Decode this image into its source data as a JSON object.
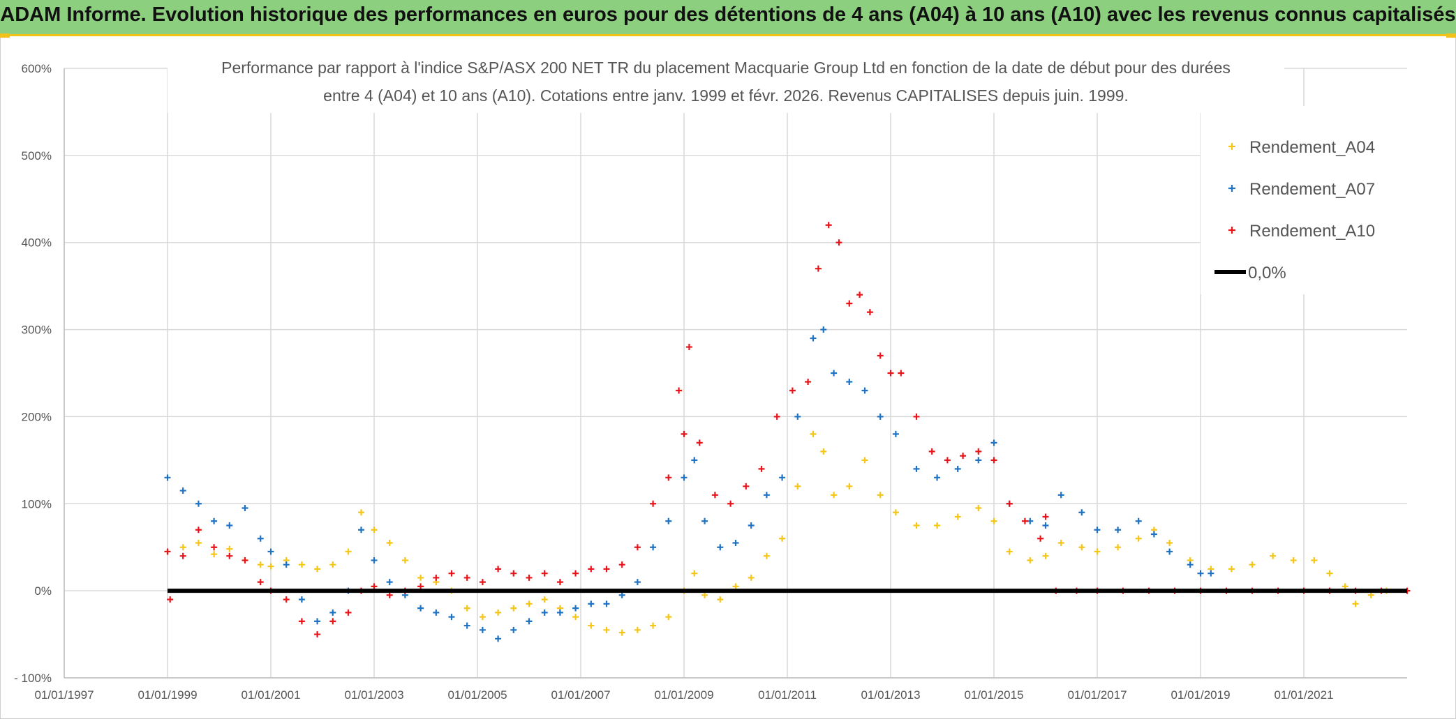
{
  "header": {
    "banner": "ADAM Informe. Evolution historique des performances en euros pour des détentions de 4 ans (A04) à 10 ans (A10) avec les revenus connus capitalisés"
  },
  "chart_data": {
    "type": "scatter",
    "title_line1": "Performance par rapport à l'indice S&P/ASX 200 NET TR  du placement Macquarie Group Ltd en fonction de la date de début pour des durées",
    "title_line2": "entre 4 (A04) et 10 ans (A10). Cotations entre janv. 1999 et févr. 2026. Revenus CAPITALISES depuis juin. 1999.",
    "x_ticks": [
      "01/01/1997",
      "01/01/1999",
      "01/01/2001",
      "01/01/2003",
      "01/01/2005",
      "01/01/2007",
      "01/01/2009",
      "01/01/2011",
      "01/01/2013",
      "01/01/2015",
      "01/01/2017",
      "01/01/2019",
      "01/01/2021"
    ],
    "y_ticks": [
      "600%",
      "500%",
      "400%",
      "300%",
      "200%",
      "100%",
      "0%",
      "- 100%"
    ],
    "xlim_years": [
      1997,
      2023
    ],
    "ylim_pct": [
      -100,
      600
    ],
    "grid": true,
    "legend_position": "top-right",
    "colors": {
      "A04": "#f5c518",
      "A07": "#1f73c2",
      "A10": "#e8141a",
      "zero": "#000000",
      "grid": "#d9d9d9"
    },
    "series": [
      {
        "name": "Rendement_A04",
        "key": "A04",
        "points": [
          [
            1999.0,
            45
          ],
          [
            1999.3,
            50
          ],
          [
            1999.6,
            55
          ],
          [
            1999.9,
            42
          ],
          [
            2000.2,
            48
          ],
          [
            2000.5,
            35
          ],
          [
            2000.8,
            30
          ],
          [
            2001.0,
            28
          ],
          [
            2001.3,
            35
          ],
          [
            2001.6,
            30
          ],
          [
            2001.9,
            25
          ],
          [
            2002.2,
            30
          ],
          [
            2002.5,
            45
          ],
          [
            2002.75,
            90
          ],
          [
            2003.0,
            70
          ],
          [
            2003.3,
            55
          ],
          [
            2003.6,
            35
          ],
          [
            2003.9,
            15
          ],
          [
            2004.2,
            10
          ],
          [
            2004.5,
            0
          ],
          [
            2004.8,
            -20
          ],
          [
            2005.1,
            -30
          ],
          [
            2005.4,
            -25
          ],
          [
            2005.7,
            -20
          ],
          [
            2006.0,
            -15
          ],
          [
            2006.3,
            -10
          ],
          [
            2006.6,
            -20
          ],
          [
            2006.9,
            -30
          ],
          [
            2007.2,
            -40
          ],
          [
            2007.5,
            -45
          ],
          [
            2007.8,
            -48
          ],
          [
            2008.1,
            -45
          ],
          [
            2008.4,
            -40
          ],
          [
            2008.7,
            -30
          ],
          [
            2009.0,
            0
          ],
          [
            2009.2,
            20
          ],
          [
            2009.4,
            -5
          ],
          [
            2009.7,
            -10
          ],
          [
            2010.0,
            5
          ],
          [
            2010.3,
            15
          ],
          [
            2010.6,
            40
          ],
          [
            2010.9,
            60
          ],
          [
            2011.2,
            120
          ],
          [
            2011.5,
            180
          ],
          [
            2011.7,
            160
          ],
          [
            2011.9,
            110
          ],
          [
            2012.2,
            120
          ],
          [
            2012.5,
            150
          ],
          [
            2012.8,
            110
          ],
          [
            2013.1,
            90
          ],
          [
            2013.5,
            75
          ],
          [
            2013.9,
            75
          ],
          [
            2014.3,
            85
          ],
          [
            2014.7,
            95
          ],
          [
            2015.0,
            80
          ],
          [
            2015.3,
            45
          ],
          [
            2015.7,
            35
          ],
          [
            2016.0,
            40
          ],
          [
            2016.3,
            55
          ],
          [
            2016.7,
            50
          ],
          [
            2017.0,
            45
          ],
          [
            2017.4,
            50
          ],
          [
            2017.8,
            60
          ],
          [
            2018.1,
            70
          ],
          [
            2018.4,
            55
          ],
          [
            2018.8,
            35
          ],
          [
            2019.2,
            25
          ],
          [
            2019.6,
            25
          ],
          [
            2020.0,
            30
          ],
          [
            2020.4,
            40
          ],
          [
            2020.8,
            35
          ],
          [
            2021.2,
            35
          ],
          [
            2021.5,
            20
          ],
          [
            2021.8,
            5
          ],
          [
            2022.0,
            -15
          ],
          [
            2022.3,
            -5
          ],
          [
            2022.6,
            0
          ],
          [
            2023.0,
            0
          ]
        ]
      },
      {
        "name": "Rendement_A07",
        "key": "A07",
        "points": [
          [
            1999.0,
            130
          ],
          [
            1999.3,
            115
          ],
          [
            1999.6,
            100
          ],
          [
            1999.9,
            80
          ],
          [
            2000.2,
            75
          ],
          [
            2000.5,
            95
          ],
          [
            2000.8,
            60
          ],
          [
            2001.0,
            45
          ],
          [
            2001.3,
            30
          ],
          [
            2001.6,
            -10
          ],
          [
            2001.9,
            -35
          ],
          [
            2002.2,
            -25
          ],
          [
            2002.5,
            0
          ],
          [
            2002.75,
            70
          ],
          [
            2003.0,
            35
          ],
          [
            2003.3,
            10
          ],
          [
            2003.6,
            -5
          ],
          [
            2003.9,
            -20
          ],
          [
            2004.2,
            -25
          ],
          [
            2004.5,
            -30
          ],
          [
            2004.8,
            -40
          ],
          [
            2005.1,
            -45
          ],
          [
            2005.4,
            -55
          ],
          [
            2005.7,
            -45
          ],
          [
            2006.0,
            -35
          ],
          [
            2006.3,
            -25
          ],
          [
            2006.6,
            -25
          ],
          [
            2006.9,
            -20
          ],
          [
            2007.2,
            -15
          ],
          [
            2007.5,
            -15
          ],
          [
            2007.8,
            -5
          ],
          [
            2008.1,
            10
          ],
          [
            2008.4,
            50
          ],
          [
            2008.7,
            80
          ],
          [
            2009.0,
            130
          ],
          [
            2009.2,
            150
          ],
          [
            2009.4,
            80
          ],
          [
            2009.7,
            50
          ],
          [
            2010.0,
            55
          ],
          [
            2010.3,
            75
          ],
          [
            2010.6,
            110
          ],
          [
            2010.9,
            130
          ],
          [
            2011.2,
            200
          ],
          [
            2011.5,
            290
          ],
          [
            2011.7,
            300
          ],
          [
            2011.9,
            250
          ],
          [
            2012.2,
            240
          ],
          [
            2012.5,
            230
          ],
          [
            2012.8,
            200
          ],
          [
            2013.1,
            180
          ],
          [
            2013.5,
            140
          ],
          [
            2013.9,
            130
          ],
          [
            2014.3,
            140
          ],
          [
            2014.7,
            150
          ],
          [
            2015.0,
            170
          ],
          [
            2015.3,
            100
          ],
          [
            2015.7,
            80
          ],
          [
            2016.0,
            75
          ],
          [
            2016.3,
            110
          ],
          [
            2016.7,
            90
          ],
          [
            2017.0,
            70
          ],
          [
            2017.4,
            70
          ],
          [
            2017.8,
            80
          ],
          [
            2018.1,
            65
          ],
          [
            2018.4,
            45
          ],
          [
            2018.8,
            30
          ],
          [
            2019.0,
            20
          ],
          [
            2019.2,
            20
          ]
        ]
      },
      {
        "name": "Rendement_A10",
        "key": "A10",
        "points": [
          [
            1999.0,
            45
          ],
          [
            1999.05,
            -10
          ],
          [
            1999.3,
            40
          ],
          [
            1999.6,
            70
          ],
          [
            1999.9,
            50
          ],
          [
            2000.2,
            40
          ],
          [
            2000.5,
            35
          ],
          [
            2000.8,
            10
          ],
          [
            2001.0,
            0
          ],
          [
            2001.3,
            -10
          ],
          [
            2001.6,
            -35
          ],
          [
            2001.9,
            -50
          ],
          [
            2002.2,
            -35
          ],
          [
            2002.5,
            -25
          ],
          [
            2002.75,
            0
          ],
          [
            2003.0,
            5
          ],
          [
            2003.3,
            -5
          ],
          [
            2003.6,
            0
          ],
          [
            2003.9,
            5
          ],
          [
            2004.2,
            15
          ],
          [
            2004.5,
            20
          ],
          [
            2004.8,
            15
          ],
          [
            2005.1,
            10
          ],
          [
            2005.4,
            25
          ],
          [
            2005.7,
            20
          ],
          [
            2006.0,
            15
          ],
          [
            2006.3,
            20
          ],
          [
            2006.6,
            10
          ],
          [
            2006.9,
            20
          ],
          [
            2007.2,
            25
          ],
          [
            2007.5,
            25
          ],
          [
            2007.8,
            30
          ],
          [
            2008.1,
            50
          ],
          [
            2008.4,
            100
          ],
          [
            2008.7,
            130
          ],
          [
            2008.9,
            230
          ],
          [
            2009.0,
            180
          ],
          [
            2009.1,
            280
          ],
          [
            2009.3,
            170
          ],
          [
            2009.6,
            110
          ],
          [
            2009.9,
            100
          ],
          [
            2010.2,
            120
          ],
          [
            2010.5,
            140
          ],
          [
            2010.8,
            200
          ],
          [
            2011.1,
            230
          ],
          [
            2011.4,
            240
          ],
          [
            2011.6,
            370
          ],
          [
            2011.8,
            420
          ],
          [
            2012.0,
            400
          ],
          [
            2012.2,
            330
          ],
          [
            2012.4,
            340
          ],
          [
            2012.6,
            320
          ],
          [
            2012.8,
            270
          ],
          [
            2013.0,
            250
          ],
          [
            2013.2,
            250
          ],
          [
            2013.5,
            200
          ],
          [
            2013.8,
            160
          ],
          [
            2014.1,
            150
          ],
          [
            2014.4,
            155
          ],
          [
            2014.7,
            160
          ],
          [
            2015.0,
            150
          ],
          [
            2015.3,
            100
          ],
          [
            2015.6,
            80
          ],
          [
            2015.9,
            60
          ],
          [
            2016.0,
            85
          ],
          [
            2016.2,
            0
          ],
          [
            2016.6,
            0
          ],
          [
            2017.0,
            0
          ],
          [
            2017.5,
            0
          ],
          [
            2018.0,
            0
          ],
          [
            2018.5,
            0
          ],
          [
            2019.0,
            0
          ],
          [
            2019.5,
            0
          ],
          [
            2020.0,
            0
          ],
          [
            2020.5,
            0
          ],
          [
            2021.0,
            0
          ],
          [
            2021.5,
            0
          ],
          [
            2022.0,
            0
          ],
          [
            2022.5,
            0
          ],
          [
            2023.0,
            0
          ]
        ]
      }
    ],
    "zero_line": {
      "name": "0,0%",
      "value": 0,
      "range_years": [
        1999.0,
        2023.0
      ]
    }
  }
}
